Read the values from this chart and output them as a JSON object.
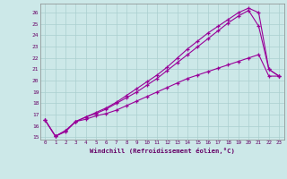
{
  "xlabel": "Windchill (Refroidissement éolien,°C)",
  "background_color": "#cce8e8",
  "grid_color": "#aacfcf",
  "line_color": "#990099",
  "xlim": [
    -0.5,
    23.5
  ],
  "ylim": [
    14.8,
    26.8
  ],
  "xticks": [
    0,
    1,
    2,
    3,
    4,
    5,
    6,
    7,
    8,
    9,
    10,
    11,
    12,
    13,
    14,
    15,
    16,
    17,
    18,
    19,
    20,
    21,
    22,
    23
  ],
  "yticks": [
    15,
    16,
    17,
    18,
    19,
    20,
    21,
    22,
    23,
    24,
    25,
    26
  ],
  "x": [
    0,
    1,
    2,
    3,
    4,
    5,
    6,
    7,
    8,
    9,
    10,
    11,
    12,
    13,
    14,
    15,
    16,
    17,
    18,
    19,
    20,
    21,
    22,
    23
  ],
  "line1_y": [
    16.5,
    15.1,
    15.5,
    16.4,
    16.6,
    16.9,
    17.1,
    17.4,
    17.8,
    18.2,
    18.6,
    19.0,
    19.4,
    19.8,
    20.2,
    20.5,
    20.8,
    21.1,
    21.4,
    21.7,
    22.0,
    22.3,
    20.4,
    20.4
  ],
  "line2_y": [
    16.5,
    15.1,
    15.6,
    16.4,
    16.8,
    17.2,
    17.6,
    18.1,
    18.7,
    19.3,
    19.9,
    20.5,
    21.2,
    22.0,
    22.8,
    23.5,
    24.2,
    24.8,
    25.4,
    26.0,
    26.4,
    26.0,
    21.0,
    20.4
  ],
  "line3_y": [
    16.5,
    15.1,
    15.6,
    16.4,
    16.8,
    17.1,
    17.5,
    18.0,
    18.5,
    19.0,
    19.6,
    20.2,
    20.9,
    21.6,
    22.3,
    23.0,
    23.7,
    24.4,
    25.1,
    25.7,
    26.2,
    24.8,
    21.0,
    20.4
  ]
}
